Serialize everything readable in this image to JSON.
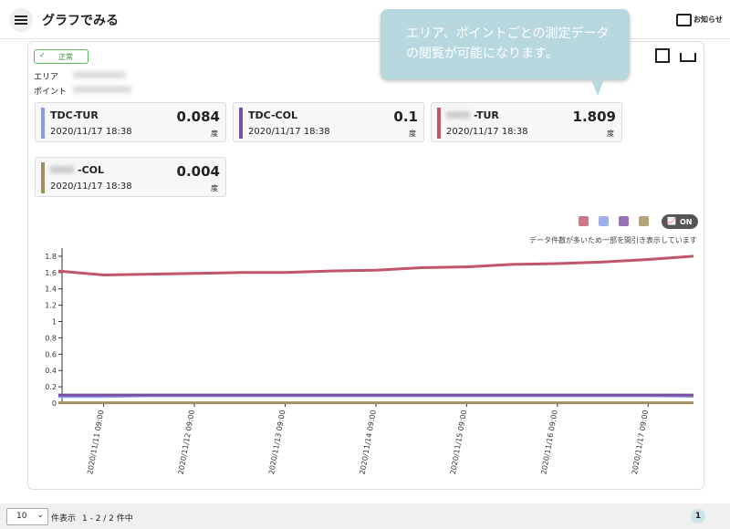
{
  "header": {
    "title": "グラフでみる",
    "notice": "お知らせ"
  },
  "callout": "エリア、ポイントごとの測定データの閲覧が可能になります。",
  "panel": {
    "status": "正常",
    "area_label": "エリア",
    "point_label": "ポイント",
    "cards": [
      {
        "name": "TDC-TUR",
        "value": "0.084",
        "date": "2020/11/17 18:38",
        "unit": "度",
        "color": "#8a9be6"
      },
      {
        "name": "TDC-COL",
        "value": "0.1",
        "date": "2020/11/17 18:38",
        "unit": "度",
        "color": "#7b4fa0"
      },
      {
        "name": "-TUR",
        "value": "1.809",
        "date": "2020/11/17 18:38",
        "unit": "度",
        "color": "#c0566a"
      },
      {
        "name": "-COL",
        "value": "0.004",
        "date": "2020/11/17 18:38",
        "unit": "度",
        "color": "#a08f5a"
      }
    ],
    "toggle": "ON",
    "note": "データ件数が多いため一部を間引き表示しています"
  },
  "chart_data": {
    "type": "line",
    "x": [
      "2020/11/10 21:00",
      "2020/11/11 09:00",
      "2020/11/11 21:00",
      "2020/11/12 09:00",
      "2020/11/12 21:00",
      "2020/11/13 09:00",
      "2020/11/13 21:00",
      "2020/11/14 09:00",
      "2020/11/14 21:00",
      "2020/11/15 09:00",
      "2020/11/15 21:00",
      "2020/11/16 09:00",
      "2020/11/16 21:00",
      "2020/11/17 09:00",
      "2020/11/17 21:00"
    ],
    "series": [
      {
        "color": "#c0566a",
        "values": [
          1.62,
          1.57,
          1.58,
          1.59,
          1.6,
          1.6,
          1.62,
          1.63,
          1.66,
          1.67,
          1.7,
          1.71,
          1.73,
          1.76,
          1.8
        ]
      },
      {
        "color": "#8a9be6",
        "values": [
          0.08,
          0.08,
          0.09,
          0.09,
          0.09,
          0.09,
          0.09,
          0.09,
          0.09,
          0.09,
          0.09,
          0.09,
          0.09,
          0.09,
          0.084
        ]
      },
      {
        "color": "#7b4fa0",
        "values": [
          0.1,
          0.1,
          0.1,
          0.1,
          0.1,
          0.1,
          0.1,
          0.1,
          0.1,
          0.1,
          0.1,
          0.1,
          0.1,
          0.1,
          0.1
        ]
      },
      {
        "color": "#a08f5a",
        "values": [
          0.004,
          0.004,
          0.004,
          0.004,
          0.004,
          0.004,
          0.004,
          0.004,
          0.004,
          0.004,
          0.004,
          0.004,
          0.004,
          0.004,
          0.004
        ]
      }
    ],
    "xlim": [
      "2020/11/10 22:00",
      "2020/11/17 21:00"
    ],
    "xticks": [
      "2020/11/11 09:00",
      "2020/11/12 09:00",
      "2020/11/13 09:00",
      "2020/11/14 09:00",
      "2020/11/15 09:00",
      "2020/11/16 09:00",
      "2020/11/17 09:00"
    ],
    "ylim": [
      0,
      1.9
    ],
    "yticks": [
      0,
      0.2,
      0.4,
      0.6,
      0.8,
      1,
      1.2,
      1.4,
      1.6,
      1.8
    ]
  },
  "footer": {
    "page_size": "10",
    "per_page_label": "件表示",
    "range": "1 - 2 / 2 件中",
    "page": "1"
  }
}
